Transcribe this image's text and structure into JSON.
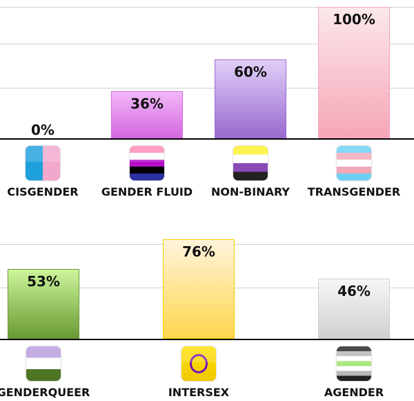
{
  "chart_data": [
    {
      "type": "bar",
      "ylim": [
        0,
        100
      ],
      "grid": true,
      "categories": [
        "CISGENDER",
        "GENDER FLUID",
        "NON-BINARY",
        "TRANSGENDER"
      ],
      "values": [
        0,
        36,
        60,
        100
      ],
      "labels": [
        "0%",
        "36%",
        "60%",
        "100%"
      ],
      "colors": [
        [
          "#ffffff",
          "#ffffff"
        ],
        [
          "#f2b8f8",
          "#d468e0"
        ],
        [
          "#e0cff8",
          "#9a6ad0"
        ],
        [
          "#fbe8ea",
          "#f6a6b8"
        ]
      ],
      "icons": [
        "cisgender-flag-icon",
        "gender-fluid-flag-icon",
        "non-binary-flag-icon",
        "transgender-flag-icon"
      ]
    },
    {
      "type": "bar",
      "ylim": [
        0,
        100
      ],
      "grid": true,
      "categories": [
        "GENDERQUEER",
        "INTERSEX",
        "AGENDER"
      ],
      "values": [
        53,
        76,
        46
      ],
      "labels": [
        "53%",
        "76%",
        "46%"
      ],
      "colors": [
        [
          "#cdf59a",
          "#6a9a34"
        ],
        [
          "#fff4dc",
          "#ffd64c"
        ],
        [
          "#f6f6f6",
          "#d0d0d0"
        ]
      ],
      "icons": [
        "genderqueer-flag-icon",
        "intersex-flag-icon",
        "agender-flag-icon"
      ]
    }
  ]
}
